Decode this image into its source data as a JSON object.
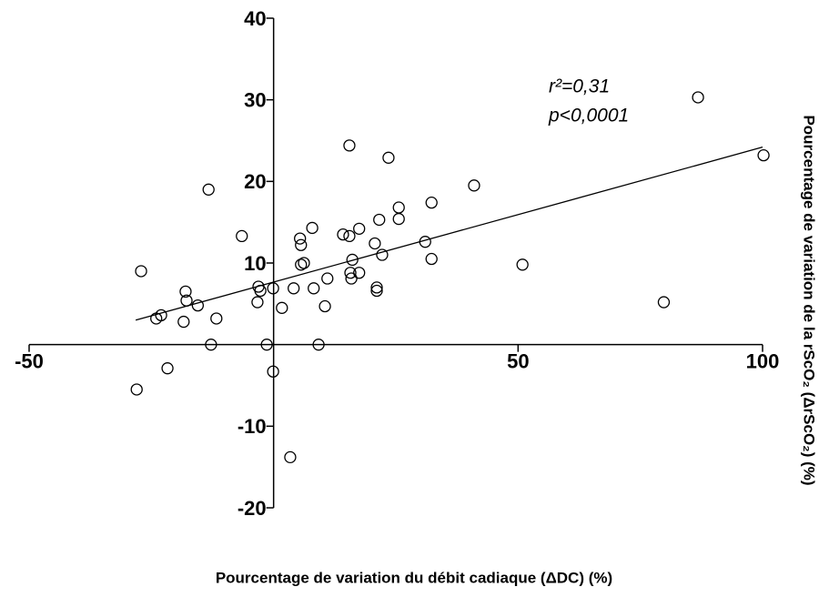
{
  "chart_data": {
    "type": "scatter",
    "x_label": "Pourcentage de variation du débit cadiaque (ΔDC)  (%)",
    "y_label": "Pourcentage de variation de la rScO₂ (ΔrScO₂) (%)",
    "annotations": [
      "r²=0,31",
      "p<0,0001"
    ],
    "x": [
      -27.1,
      -28.0,
      -24.0,
      -23.0,
      -21.7,
      -18.0,
      -17.8,
      -18.4,
      -15.5,
      -13.3,
      -12.8,
      -11.7,
      -6.5,
      -3.3,
      -3.1,
      -2.7,
      -1.4,
      -0.1,
      -0.1,
      1.7,
      3.4,
      4.1,
      5.4,
      5.6,
      5.6,
      6.2,
      7.9,
      8.2,
      9.2,
      10.5,
      11.0,
      14.2,
      15.5,
      15.5,
      15.7,
      15.9,
      16.1,
      17.5,
      17.5,
      20.7,
      21.1,
      21.1,
      21.6,
      22.2,
      23.5,
      25.6,
      25.6,
      31.0,
      32.3,
      32.3,
      41.0,
      50.9,
      79.8,
      86.8,
      100.2
    ],
    "y": [
      9.0,
      -5.5,
      3.2,
      3.6,
      -2.9,
      6.5,
      5.4,
      2.8,
      4.8,
      19.0,
      0,
      3.2,
      13.3,
      5.2,
      7.1,
      6.6,
      0,
      6.9,
      -3.3,
      4.5,
      -13.8,
      6.9,
      13.0,
      12.2,
      9.8,
      10.0,
      14.3,
      6.9,
      0,
      4.7,
      8.1,
      13.5,
      24.4,
      13.3,
      8.8,
      8.1,
      10.4,
      8.8,
      14.2,
      12.4,
      7.0,
      6.6,
      15.3,
      11.0,
      22.9,
      16.8,
      15.4,
      12.6,
      17.4,
      10.5,
      19.5,
      9.8,
      5.2,
      30.3,
      23.2
    ],
    "fit_line": {
      "x": [
        -28.2,
        100
      ],
      "y": [
        3.0,
        24.2
      ]
    },
    "color": "#000000",
    "xlim": [
      -50,
      100
    ],
    "xticks": [
      -50,
      50,
      100
    ],
    "ylim": [
      -20,
      40
    ],
    "yticks": [
      -20,
      -10,
      10,
      20,
      30,
      40
    ]
  }
}
